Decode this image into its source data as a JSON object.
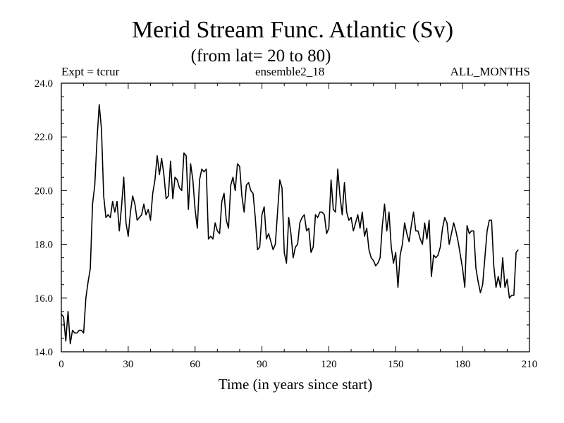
{
  "chart_data": {
    "type": "line",
    "title": "Merid Stream Func. Atlantic (Sv)",
    "subtitle": "(from lat= 20 to 80)",
    "annotations": {
      "left": "Expt = tcrur",
      "center": "ensemble2_18",
      "right": "ALL_MONTHS"
    },
    "xlabel": "Time (in years since start)",
    "ylabel": "",
    "xlim": [
      0,
      210
    ],
    "ylim": [
      14,
      24
    ],
    "xticks": [
      0,
      30,
      60,
      90,
      120,
      150,
      180,
      210
    ],
    "yticks": [
      14,
      16,
      18,
      20,
      22,
      24
    ],
    "xtick_labels": [
      "0",
      "30",
      "60",
      "90",
      "120",
      "150",
      "180",
      "210"
    ],
    "ytick_labels": [
      "14.0",
      "16.0",
      "18.0",
      "20.0",
      "22.0",
      "24.0"
    ],
    "grid": false,
    "line_color": "#000000",
    "series": [
      {
        "x_start": 0,
        "x_step": 1,
        "values": [
          15.4,
          15.3,
          14.4,
          15.5,
          14.3,
          14.8,
          14.7,
          14.7,
          14.8,
          14.8,
          14.7,
          16.0,
          16.6,
          17.1,
          19.5,
          20.2,
          21.9,
          23.2,
          22.3,
          19.8,
          19.0,
          19.1,
          19.0,
          19.6,
          19.2,
          19.6,
          18.5,
          19.4,
          20.5,
          18.8,
          18.3,
          19.2,
          19.8,
          19.5,
          18.9,
          19.0,
          19.1,
          19.5,
          19.1,
          19.3,
          18.9,
          19.9,
          20.4,
          21.3,
          20.6,
          21.2,
          20.6,
          19.7,
          19.8,
          21.1,
          19.7,
          20.5,
          20.4,
          20.1,
          20.0,
          21.4,
          21.3,
          19.3,
          21.0,
          20.4,
          19.3,
          18.6,
          20.4,
          20.8,
          20.7,
          20.8,
          18.2,
          18.3,
          18.2,
          18.8,
          18.5,
          18.4,
          19.6,
          19.9,
          18.9,
          18.6,
          20.2,
          20.5,
          20.0,
          21.0,
          20.9,
          19.8,
          19.2,
          20.2,
          20.3,
          20.0,
          19.9,
          19.0,
          17.8,
          17.9,
          19.1,
          19.4,
          18.2,
          18.4,
          18.1,
          17.8,
          18.0,
          19.2,
          20.4,
          20.1,
          17.7,
          17.3,
          19.0,
          18.4,
          17.5,
          17.9,
          18.0,
          18.8,
          19.0,
          19.1,
          18.5,
          18.6,
          17.7,
          17.9,
          19.1,
          19.0,
          19.2,
          19.2,
          19.1,
          18.4,
          18.6,
          20.4,
          19.3,
          19.2,
          20.8,
          19.8,
          19.1,
          20.3,
          19.2,
          18.9,
          19.0,
          18.5,
          18.8,
          19.1,
          18.6,
          19.2,
          18.3,
          18.6,
          17.8,
          17.5,
          17.4,
          17.2,
          17.3,
          17.5,
          18.7,
          19.5,
          18.5,
          19.2,
          17.9,
          17.3,
          17.7,
          16.4,
          17.6,
          18.0,
          18.8,
          18.4,
          18.1,
          18.7,
          19.2,
          18.5,
          18.5,
          18.2,
          18.0,
          18.8,
          18.2,
          18.9,
          16.8,
          17.6,
          17.5,
          17.6,
          17.9,
          18.6,
          19.0,
          18.8,
          18.0,
          18.4,
          18.8,
          18.5,
          18.1,
          17.6,
          17.1,
          16.4,
          18.7,
          18.4,
          18.5,
          18.5,
          17.1,
          16.6,
          16.2,
          16.5,
          17.5,
          18.5,
          18.9,
          18.9,
          17.2,
          16.4,
          16.8,
          16.4,
          17.5,
          16.4,
          16.7,
          16.0,
          16.1,
          16.1,
          17.7,
          17.8
        ]
      }
    ]
  }
}
